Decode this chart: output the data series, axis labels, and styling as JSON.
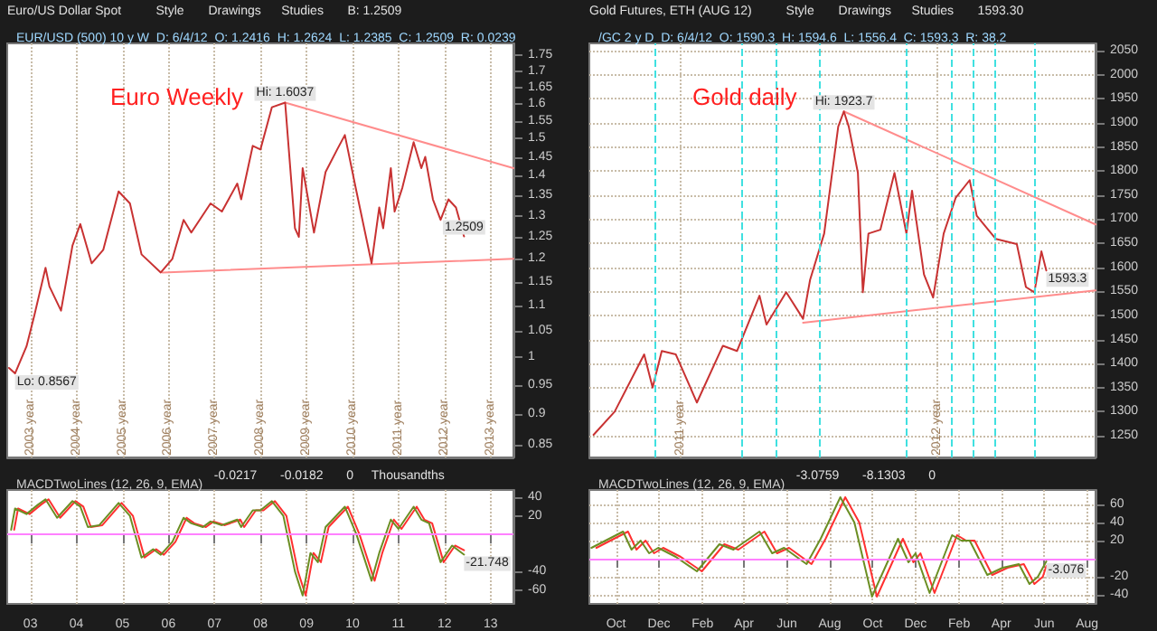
{
  "chart_data": [
    {
      "type": "line",
      "title": "Euro Weekly",
      "subtitle": "EUR/USD (500) 10 y W  D: 6/4/12  O: 1.2416  H: 1.2624  L: 1.2385  C: 1.2509  R: 0.0239",
      "log": "y",
      "grid": "x",
      "marker": "none",
      "line_style": "solid",
      "xlim": [
        "2002-07-01",
        "2013-07-01"
      ],
      "xticks": [
        {
          "value": "2003-01-01",
          "label": "2003 year"
        },
        {
          "value": "2004-01-01",
          "label": "2004 year"
        },
        {
          "value": "2005-01-01",
          "label": "2005 year"
        },
        {
          "value": "2006-01-01",
          "label": "2006 year"
        },
        {
          "value": "2007-01-01",
          "label": "2007 year"
        },
        {
          "value": "2008-01-01",
          "label": "2008 year"
        },
        {
          "value": "2009-01-01",
          "label": "2009 year"
        },
        {
          "value": "2010-01-01",
          "label": "2010 year"
        },
        {
          "value": "2011-01-01",
          "label": "2011 year"
        },
        {
          "value": "2012-01-01",
          "label": "2012 year"
        },
        {
          "value": "2013-01-01",
          "label": "2013 year"
        }
      ],
      "ylim": [
        0.83,
        1.79
      ],
      "yticks": [
        0.85,
        0.9,
        0.95,
        1,
        1.05,
        1.1,
        1.15,
        1.2,
        1.25,
        1.3,
        1.35,
        1.4,
        1.45,
        1.5,
        1.55,
        1.6,
        1.65,
        1.7,
        1.75
      ],
      "series": [
        {
          "color": "#c83232",
          "x": [
            "2002-07-15",
            "2002-09-01",
            "2002-12-01",
            "2003-02-01",
            "2003-05-01",
            "2003-06-01",
            "2003-09-01",
            "2003-12-01",
            "2004-02-01",
            "2004-05-01",
            "2004-08-01",
            "2004-12-01",
            "2005-03-01",
            "2005-06-01",
            "2005-11-01",
            "2006-02-01",
            "2006-05-01",
            "2006-07-01",
            "2006-12-01",
            "2007-03-01",
            "2007-07-01",
            "2007-08-01",
            "2007-11-01",
            "2008-01-01",
            "2008-04-01",
            "2008-07-15",
            "2008-10-01",
            "2008-11-01",
            "2008-12-01",
            "2009-03-01",
            "2009-06-01",
            "2009-09-01",
            "2009-11-01",
            "2010-02-01",
            "2010-06-01",
            "2010-08-01",
            "2010-09-01",
            "2010-11-01",
            "2010-12-01",
            "2011-02-01",
            "2011-05-01",
            "2011-07-01",
            "2011-08-01",
            "2011-10-01",
            "2011-12-01",
            "2012-02-01",
            "2012-04-01",
            "2012-06-04"
          ],
          "values": [
            0.98,
            0.97,
            1.02,
            1.08,
            1.18,
            1.14,
            1.09,
            1.23,
            1.28,
            1.19,
            1.22,
            1.36,
            1.33,
            1.21,
            1.17,
            1.2,
            1.29,
            1.26,
            1.33,
            1.31,
            1.38,
            1.34,
            1.48,
            1.47,
            1.59,
            1.6037,
            1.27,
            1.25,
            1.42,
            1.26,
            1.41,
            1.47,
            1.51,
            1.36,
            1.19,
            1.32,
            1.27,
            1.42,
            1.31,
            1.37,
            1.49,
            1.42,
            1.45,
            1.34,
            1.29,
            1.34,
            1.32,
            1.2509
          ]
        },
        {
          "color": "#ff8c8c",
          "x": [
            "2008-07-15",
            "2013-07-01"
          ],
          "values": [
            1.6037,
            1.42
          ]
        },
        {
          "color": "#ff8c8c",
          "x": [
            "2005-11-15",
            "2013-07-01"
          ],
          "values": [
            1.17,
            1.2
          ]
        }
      ],
      "annotations": [
        "Euro/US Dollar Spot",
        "Style",
        "Drawings",
        "Studies",
        "B: 1.2509",
        {
          "text": "Hi: 1.6037",
          "x": "2008-07-15",
          "y": 1.6037
        },
        {
          "text": "Lo: 0.8567",
          "x": "2002-09-01",
          "y": 0.97
        },
        {
          "text": "1.2509",
          "x": "2012-06-04",
          "y": 1.2509
        }
      ]
    },
    {
      "type": "line",
      "title": "MACDTwoLines (12, 26, 9, EMA)",
      "grid": "x",
      "marker": "none",
      "line_style": "solid",
      "xlim": [
        "2002-07-01",
        "2013-07-01"
      ],
      "xticks": [
        {
          "value": "2003-01-01",
          "label": "03"
        },
        {
          "value": "2004-01-01",
          "label": "04"
        },
        {
          "value": "2005-01-01",
          "label": "05"
        },
        {
          "value": "2006-01-01",
          "label": "06"
        },
        {
          "value": "2007-01-01",
          "label": "07"
        },
        {
          "value": "2008-01-01",
          "label": "08"
        },
        {
          "value": "2009-01-01",
          "label": "09"
        },
        {
          "value": "2010-01-01",
          "label": "10"
        },
        {
          "value": "2011-01-01",
          "label": "11"
        },
        {
          "value": "2012-01-01",
          "label": "12"
        },
        {
          "value": "2013-01-01",
          "label": "13"
        }
      ],
      "ylim": [
        -75,
        48
      ],
      "yticks": [
        -60,
        -40,
        20,
        40
      ],
      "series": [
        {
          "color": "#6b8e23",
          "x": [
            "2002-08-01",
            "2002-09-01",
            "2002-12-01",
            "2003-03-01",
            "2003-05-01",
            "2003-08-01",
            "2003-12-01",
            "2004-02-01",
            "2004-04-01",
            "2004-07-01",
            "2004-12-01",
            "2005-03-01",
            "2005-06-01",
            "2005-09-01",
            "2005-11-01",
            "2006-02-01",
            "2006-05-01",
            "2006-07-01",
            "2006-10-01",
            "2006-12-01",
            "2007-03-01",
            "2007-07-01",
            "2007-08-01",
            "2007-11-01",
            "2008-01-01",
            "2008-04-01",
            "2008-07-01",
            "2008-10-01",
            "2008-12-01",
            "2009-02-01",
            "2009-04-01",
            "2009-06-01",
            "2009-11-01",
            "2010-02-01",
            "2010-06-01",
            "2010-08-01",
            "2010-11-01",
            "2011-01-01",
            "2011-05-01",
            "2011-07-01",
            "2011-09-01",
            "2011-12-01",
            "2012-03-01",
            "2012-06-04"
          ],
          "values": [
            5,
            28,
            22,
            32,
            38,
            18,
            36,
            30,
            8,
            10,
            34,
            20,
            -25,
            -16,
            -22,
            -8,
            18,
            12,
            8,
            14,
            10,
            16,
            8,
            26,
            26,
            36,
            20,
            -40,
            -66,
            -20,
            -30,
            8,
            30,
            0,
            -50,
            -20,
            16,
            6,
            30,
            16,
            12,
            -30,
            -12,
            -21.748
          ]
        },
        {
          "color": "#ff3030",
          "x": [
            "2002-08-25",
            "2002-09-25",
            "2002-12-25",
            "2003-03-25",
            "2003-05-25",
            "2003-08-25",
            "2003-12-25",
            "2004-02-25",
            "2004-04-25",
            "2004-07-25",
            "2004-12-25",
            "2005-03-25",
            "2005-06-25",
            "2005-09-25",
            "2005-11-25",
            "2006-02-25",
            "2006-05-25",
            "2006-07-25",
            "2006-10-25",
            "2006-12-25",
            "2007-03-25",
            "2007-07-25",
            "2007-08-25",
            "2007-11-25",
            "2008-01-25",
            "2008-04-25",
            "2008-07-25",
            "2008-10-25",
            "2008-12-25",
            "2009-02-25",
            "2009-04-25",
            "2009-06-25",
            "2009-11-25",
            "2010-02-25",
            "2010-06-25",
            "2010-08-25",
            "2010-11-25",
            "2011-01-25",
            "2011-05-25",
            "2011-07-25",
            "2011-09-25",
            "2011-12-25",
            "2012-03-25",
            "2012-06-04"
          ],
          "values": [
            5,
            28,
            22,
            32,
            38,
            18,
            36,
            30,
            8,
            10,
            34,
            20,
            -25,
            -16,
            -22,
            -8,
            18,
            12,
            8,
            14,
            10,
            16,
            8,
            26,
            26,
            36,
            20,
            -40,
            -66,
            -20,
            -30,
            8,
            30,
            0,
            -50,
            -20,
            16,
            6,
            30,
            16,
            12,
            -30,
            -12,
            -17
          ]
        }
      ],
      "ref_lines": [
        {
          "axis": "y",
          "value": 0,
          "color": "#ff80ff"
        }
      ],
      "annotations": [
        "-0.0217",
        "-0.0182",
        "0",
        "Thousandths",
        {
          "text": "-21.748",
          "x": "2012-06-04",
          "y": -21.748
        }
      ]
    },
    {
      "type": "line",
      "title": "Gold daily",
      "subtitle": "/GC 2 y D  D: 6/4/12  O: 1590.3  H: 1594.6  L: 1556.4  C: 1593.3  R: 38.2",
      "grid": true,
      "marker": "none",
      "line_style": "solid",
      "xlim": [
        "2010-08-24",
        "2012-08-13"
      ],
      "xticks": [
        {
          "value": "2011-01-01",
          "label": "2011 year"
        },
        {
          "value": "2012-01-01",
          "label": "2012 year"
        }
      ],
      "ylim": [
        1205,
        2065
      ],
      "yticks": [
        1250,
        1300,
        1350,
        1400,
        1450,
        1500,
        1550,
        1600,
        1650,
        1700,
        1750,
        1800,
        1850,
        1900,
        1950,
        2000,
        2050
      ],
      "series": [
        {
          "color": "#c83232",
          "x": [
            "2010-08-30",
            "2010-09-29",
            "2010-11-10",
            "2010-11-22",
            "2010-12-05",
            "2010-12-25",
            "2011-01-24",
            "2011-03-02",
            "2011-03-22",
            "2011-04-23",
            "2011-05-03",
            "2011-05-31",
            "2011-06-24",
            "2011-07-04",
            "2011-07-24",
            "2011-08-13",
            "2011-08-21",
            "2011-08-28",
            "2011-09-10",
            "2011-09-17",
            "2011-09-25",
            "2011-10-12",
            "2011-11-01",
            "2011-11-18",
            "2011-11-26",
            "2011-12-13",
            "2011-12-26",
            "2012-01-10",
            "2012-01-27",
            "2012-02-16",
            "2012-02-26",
            "2012-03-24",
            "2012-04-23",
            "2012-05-06",
            "2012-05-18",
            "2012-05-28",
            "2012-06-04"
          ],
          "values": [
            1252,
            1300,
            1419,
            1350,
            1426,
            1419,
            1319,
            1437,
            1426,
            1541,
            1481,
            1548,
            1493,
            1574,
            1670,
            1892,
            1923.7,
            1892,
            1796,
            1548,
            1670,
            1678,
            1796,
            1670,
            1759,
            1585,
            1537,
            1670,
            1744,
            1781,
            1707,
            1659,
            1648,
            1559,
            1548,
            1633,
            1593.3
          ]
        },
        {
          "color": "#ff8c8c",
          "x": [
            "2011-08-21",
            "2012-08-13"
          ],
          "values": [
            1923.7,
            1689
          ]
        },
        {
          "color": "#ff8c8c",
          "x": [
            "2011-06-24",
            "2012-08-13"
          ],
          "values": [
            1485,
            1552
          ]
        }
      ],
      "ref_lines": [
        {
          "axis": "x",
          "value": "2010-11-25",
          "color": "#40e0e0",
          "line_style": "dashed"
        },
        {
          "axis": "x",
          "value": "2011-03-28",
          "color": "#40e0e0",
          "line_style": "dashed"
        },
        {
          "axis": "x",
          "value": "2011-05-16",
          "color": "#40e0e0",
          "line_style": "dashed"
        },
        {
          "axis": "x",
          "value": "2011-07-18",
          "color": "#40e0e0",
          "line_style": "dashed"
        },
        {
          "axis": "x",
          "value": "2011-11-18",
          "color": "#40e0e0",
          "line_style": "dashed"
        },
        {
          "axis": "x",
          "value": "2012-01-22",
          "color": "#40e0e0",
          "line_style": "dashed"
        },
        {
          "axis": "x",
          "value": "2012-02-21",
          "color": "#40e0e0",
          "line_style": "dashed"
        },
        {
          "axis": "x",
          "value": "2012-03-23",
          "color": "#40e0e0",
          "line_style": "dashed"
        },
        {
          "axis": "x",
          "value": "2012-05-19",
          "color": "#40e0e0",
          "line_style": "dashed"
        }
      ],
      "annotations": [
        "Gold Futures, ETH (AUG 12)",
        "Style",
        "Drawings",
        "Studies",
        "1593.30",
        {
          "text": "Hi: 1923.7",
          "x": "2011-08-21",
          "y": 1923.7
        },
        {
          "text": "1593.3",
          "x": "2012-06-04",
          "y": 1593.3
        }
      ]
    },
    {
      "type": "line",
      "title": "MACDTwoLines (12, 26, 9, EMA)",
      "grid": true,
      "marker": "none",
      "line_style": "solid",
      "xlim": [
        "2010-08-24",
        "2012-08-13"
      ],
      "xticks": [
        {
          "value": "2010-10-01",
          "label": "Oct"
        },
        {
          "value": "2010-12-01",
          "label": "Dec"
        },
        {
          "value": "2011-02-01",
          "label": "Feb"
        },
        {
          "value": "2011-04-01",
          "label": "Apr"
        },
        {
          "value": "2011-06-01",
          "label": "Jun"
        },
        {
          "value": "2011-08-01",
          "label": "Aug"
        },
        {
          "value": "2011-10-01",
          "label": "Oct"
        },
        {
          "value": "2011-12-01",
          "label": "Dec"
        },
        {
          "value": "2012-02-01",
          "label": "Feb"
        },
        {
          "value": "2012-04-01",
          "label": "Apr"
        },
        {
          "value": "2012-06-01",
          "label": "Jun"
        },
        {
          "value": "2012-08-01",
          "label": "Aug"
        }
      ],
      "ylim": [
        -50,
        76
      ],
      "yticks": [
        -40,
        -20,
        20,
        40,
        60
      ],
      "series": [
        {
          "color": "#6b8e23",
          "x": [
            "2010-08-27",
            "2010-10-11",
            "2010-10-23",
            "2010-11-05",
            "2010-11-17",
            "2010-11-30",
            "2010-12-25",
            "2011-01-24",
            "2011-02-25",
            "2011-03-17",
            "2011-04-23",
            "2011-05-11",
            "2011-05-28",
            "2011-06-29",
            "2011-07-19",
            "2011-08-16",
            "2011-09-05",
            "2011-09-30",
            "2011-11-06",
            "2011-11-21",
            "2011-12-01",
            "2011-12-21",
            "2012-01-22",
            "2012-02-04",
            "2012-02-16",
            "2012-03-12",
            "2012-04-03",
            "2012-04-26",
            "2012-05-11",
            "2012-05-23",
            "2012-06-04"
          ],
          "values": [
            12,
            30,
            10,
            20,
            6,
            12,
            2,
            -14,
            16,
            10,
            30,
            6,
            12,
            -6,
            22,
            68,
            40,
            -42,
            22,
            -4,
            6,
            -38,
            26,
            20,
            20,
            -18,
            -10,
            -6,
            -28,
            -20,
            -3.076
          ]
        },
        {
          "color": "#ff3030",
          "x": [
            "2010-09-03",
            "2010-10-18",
            "2010-10-30",
            "2010-11-12",
            "2010-11-24",
            "2010-12-07",
            "2011-01-01",
            "2011-01-31",
            "2011-03-04",
            "2011-03-24",
            "2011-04-30",
            "2011-05-18",
            "2011-06-04",
            "2011-07-06",
            "2011-07-26",
            "2011-08-23",
            "2011-09-12",
            "2011-10-07",
            "2011-11-13",
            "2011-11-28",
            "2011-12-08",
            "2011-12-28",
            "2012-01-29",
            "2012-02-11",
            "2012-02-23",
            "2012-03-19",
            "2012-04-10",
            "2012-05-03",
            "2012-05-18",
            "2012-05-30",
            "2012-06-04"
          ],
          "values": [
            12,
            30,
            10,
            20,
            6,
            12,
            2,
            -14,
            16,
            10,
            30,
            6,
            12,
            -6,
            22,
            68,
            40,
            -42,
            22,
            -4,
            6,
            -38,
            26,
            20,
            20,
            -18,
            -10,
            -6,
            -28,
            -20,
            -8
          ]
        }
      ],
      "ref_lines": [
        {
          "axis": "y",
          "value": 0,
          "color": "#ff80ff"
        }
      ],
      "annotations": [
        "-3.0759",
        "-8.1303",
        "0",
        {
          "text": "-3.076",
          "x": "2012-06-04",
          "y": -3.076
        }
      ]
    }
  ]
}
